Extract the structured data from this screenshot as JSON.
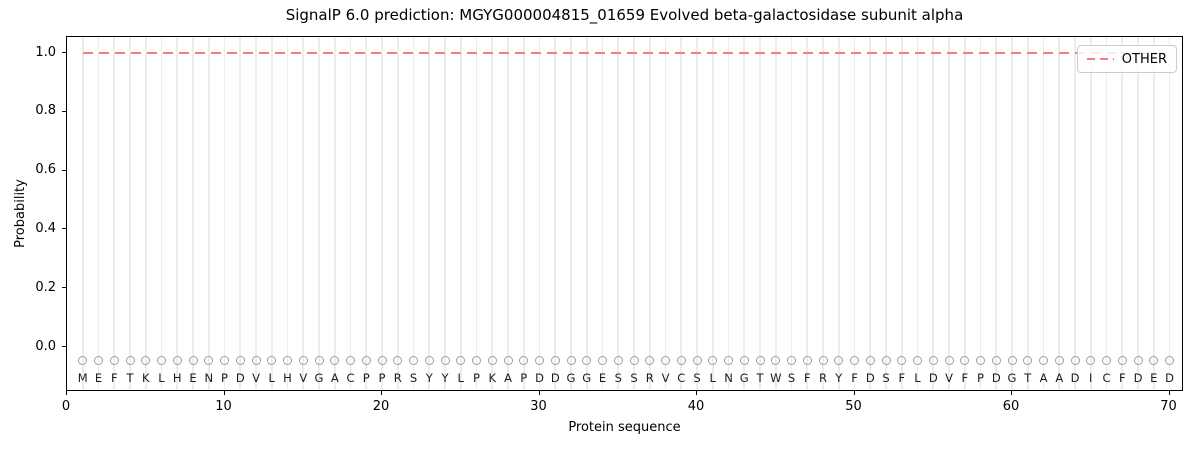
{
  "figure": {
    "title": "SignalP 6.0 prediction: MGYG000004815_01659 Evolved beta-galactosidase subunit alpha",
    "xlabel": "Protein sequence",
    "ylabel": "Probability",
    "legend": {
      "label": "OTHER"
    }
  },
  "sequence": "MEFTKLHENPDVLHVGACPPRSYYLPKAPDDGGESSRVCSLNGTWSFRYFDSFLDVFPDGTAADICFDED",
  "axes": {
    "ytick_labels": [
      "1.0",
      "0.8",
      "0.6",
      "0.4",
      "0.2",
      "0.0"
    ],
    "ytick_values": [
      1.0,
      0.8,
      0.6,
      0.4,
      0.2,
      0.0
    ],
    "xtick_values": [
      0,
      10,
      20,
      30,
      40,
      50,
      60,
      70
    ]
  },
  "colors": {
    "other_line": "#F08080",
    "grid": "#ececec",
    "marker_circle": "#9e9e9e",
    "letter": "#1a1a1a",
    "legend_border": "#cccccc",
    "spine": "#000000"
  },
  "chart_data": {
    "type": "line",
    "title": "SignalP 6.0 prediction: MGYG000004815_01659 Evolved beta-galactosidase subunit alpha",
    "xlabel": "Protein sequence",
    "ylabel": "Probability",
    "xlim": [
      0,
      71
    ],
    "ylim": [
      -0.15,
      1.05
    ],
    "grid": "light vertical gridline at every residue position 1-70",
    "legend_position": "upper right",
    "x": [
      1,
      2,
      3,
      4,
      5,
      6,
      7,
      8,
      9,
      10,
      11,
      12,
      13,
      14,
      15,
      16,
      17,
      18,
      19,
      20,
      21,
      22,
      23,
      24,
      25,
      26,
      27,
      28,
      29,
      30,
      31,
      32,
      33,
      34,
      35,
      36,
      37,
      38,
      39,
      40,
      41,
      42,
      43,
      44,
      45,
      46,
      47,
      48,
      49,
      50,
      51,
      52,
      53,
      54,
      55,
      56,
      57,
      58,
      59,
      60,
      61,
      62,
      63,
      64,
      65,
      66,
      67,
      68,
      69,
      70
    ],
    "series": [
      {
        "name": "OTHER",
        "style": "dashed",
        "color": "#F08080",
        "values": [
          1,
          1,
          1,
          1,
          1,
          1,
          1,
          1,
          1,
          1,
          1,
          1,
          1,
          1,
          1,
          1,
          1,
          1,
          1,
          1,
          1,
          1,
          1,
          1,
          1,
          1,
          1,
          1,
          1,
          1,
          1,
          1,
          1,
          1,
          1,
          1,
          1,
          1,
          1,
          1,
          1,
          1,
          1,
          1,
          1,
          1,
          1,
          1,
          1,
          1,
          1,
          1,
          1,
          1,
          1,
          1,
          1,
          1,
          1,
          1,
          1,
          1,
          1,
          1,
          1,
          1,
          1,
          1,
          1,
          1
        ]
      }
    ],
    "sequence_labels": "MEFTKLHENPDVLHVGACPPRSYYLPKAPDDGGESSRVCSLNGTWSFRYFDSFLDVFPDGTAADICFDED",
    "marker_row": "open gray circle above each residue letter at y ~ -0.04"
  }
}
